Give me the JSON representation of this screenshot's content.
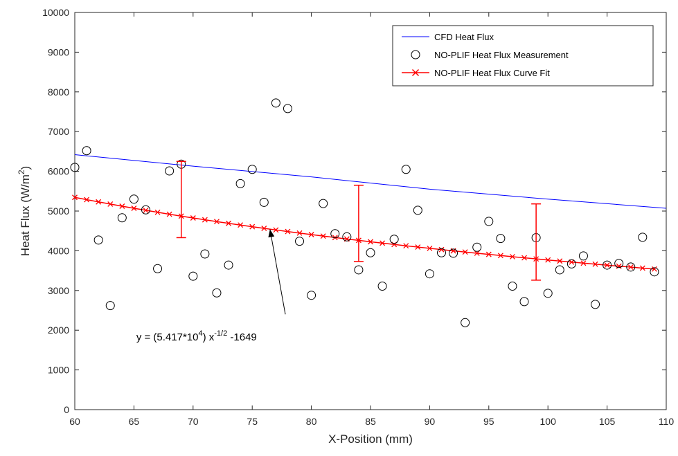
{
  "chart_data": {
    "type": "scatter",
    "xlabel": "X-Position (mm)",
    "ylabel_main": "Heat Flux (W/m",
    "ylabel_sup": "2",
    "ylabel_end": ")",
    "xlim": [
      60,
      110
    ],
    "ylim": [
      0,
      10000
    ],
    "xticks": [
      60,
      65,
      70,
      75,
      80,
      85,
      90,
      95,
      100,
      105,
      110
    ],
    "yticks": [
      0,
      1000,
      2000,
      3000,
      4000,
      5000,
      6000,
      7000,
      8000,
      9000,
      10000
    ],
    "grid": false,
    "legend_position": "top-right",
    "series": [
      {
        "name": "CFD Heat Flux",
        "kind": "line",
        "color": "#0000ff",
        "x": [
          60,
          70,
          80,
          90,
          100,
          110
        ],
        "y": [
          6420,
          6130,
          5860,
          5550,
          5300,
          5070
        ]
      },
      {
        "name": "NO-PLIF Heat Flux Measurement",
        "kind": "markers",
        "marker": "circle",
        "color": "#000000",
        "x": [
          60,
          61,
          62,
          63,
          64,
          65,
          66,
          67,
          68,
          69,
          70,
          71,
          72,
          73,
          74,
          75,
          76,
          77,
          78,
          79,
          80,
          81,
          82,
          83,
          84,
          85,
          86,
          87,
          88,
          89,
          90,
          91,
          92,
          93,
          94,
          95,
          96,
          97,
          98,
          99,
          100,
          101,
          102,
          103,
          104,
          105,
          106,
          107,
          108,
          109
        ],
        "y": [
          6100,
          6520,
          4270,
          2620,
          4830,
          5300,
          5030,
          3550,
          6010,
          6180,
          3360,
          3920,
          2940,
          3640,
          5690,
          6050,
          5220,
          7720,
          7580,
          4240,
          2880,
          5190,
          4430,
          4350,
          3520,
          3950,
          3110,
          4290,
          6050,
          5020,
          3420,
          3950,
          3940,
          2190,
          4090,
          4740,
          4310,
          3110,
          2720,
          4330,
          2930,
          3520,
          3670,
          3870,
          2650,
          3640,
          3680,
          3590,
          4340,
          3470
        ]
      },
      {
        "name": "NO-PLIF Heat Flux Curve Fit",
        "kind": "line-markers",
        "marker": "x",
        "color": "#ff0000",
        "fit": {
          "a": 54170,
          "b": -1649,
          "exponent": -0.5
        },
        "x_range": [
          60,
          109
        ],
        "x_step": 1
      }
    ],
    "error_bars": {
      "color": "#ff0000",
      "x": [
        69,
        84,
        99
      ],
      "y": [
        4880,
        4260,
        3790
      ],
      "lower": [
        4330,
        3730,
        3260
      ],
      "upper": [
        6250,
        5650,
        5180
      ]
    },
    "annotation": {
      "text_pre": "y = (5.417*10",
      "sup1": "4",
      "text_mid": ") x",
      "sup2": "-1/2",
      "text_post": " -1649",
      "arrow_from": [
        77.8,
        2400
      ],
      "arrow_to": [
        76.5,
        4540
      ],
      "text_x": 65.2,
      "text_y": 1740
    }
  }
}
